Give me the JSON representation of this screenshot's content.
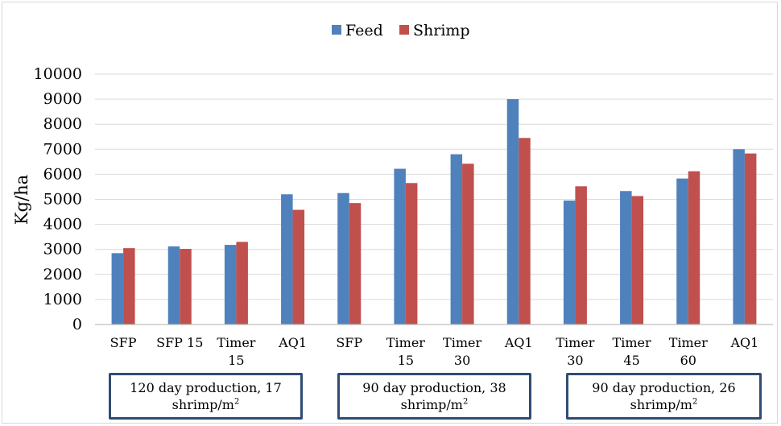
{
  "chart_data": {
    "type": "bar",
    "ylabel": "Kg/ha",
    "ylim": [
      0,
      10000
    ],
    "yticks": [
      0,
      1000,
      2000,
      3000,
      4000,
      5000,
      6000,
      7000,
      8000,
      9000,
      10000
    ],
    "legend_position": "top-center",
    "grid": true,
    "categories": [
      [
        "SFP"
      ],
      [
        "SFP 15"
      ],
      [
        "Timer",
        "15"
      ],
      [
        "AQ1"
      ],
      [
        "SFP"
      ],
      [
        "Timer",
        "15"
      ],
      [
        "Timer",
        "30"
      ],
      [
        "AQ1"
      ],
      [
        "Timer",
        "30"
      ],
      [
        "Timer",
        "45"
      ],
      [
        "Timer",
        "60"
      ],
      [
        "AQ1"
      ]
    ],
    "series": [
      {
        "name": "Feed",
        "color": "#4f81bd",
        "values": [
          2850,
          3120,
          3180,
          5200,
          5250,
          6220,
          6800,
          9000,
          4950,
          5330,
          5830,
          7000
        ]
      },
      {
        "name": "Shrimp",
        "color": "#c0504d",
        "values": [
          3050,
          3020,
          3300,
          4580,
          4850,
          5650,
          6420,
          7450,
          5520,
          5130,
          6120,
          6830
        ]
      }
    ],
    "groups": [
      {
        "line1": "120 day production,  17",
        "line2": "shrimp/m",
        "sup": "2"
      },
      {
        "line1": "90 day production, 38",
        "line2": "shrimp/m",
        "sup": "2"
      },
      {
        "line1": "90 day production, 26",
        "line2": "shrimp/m",
        "sup": "2"
      }
    ]
  }
}
